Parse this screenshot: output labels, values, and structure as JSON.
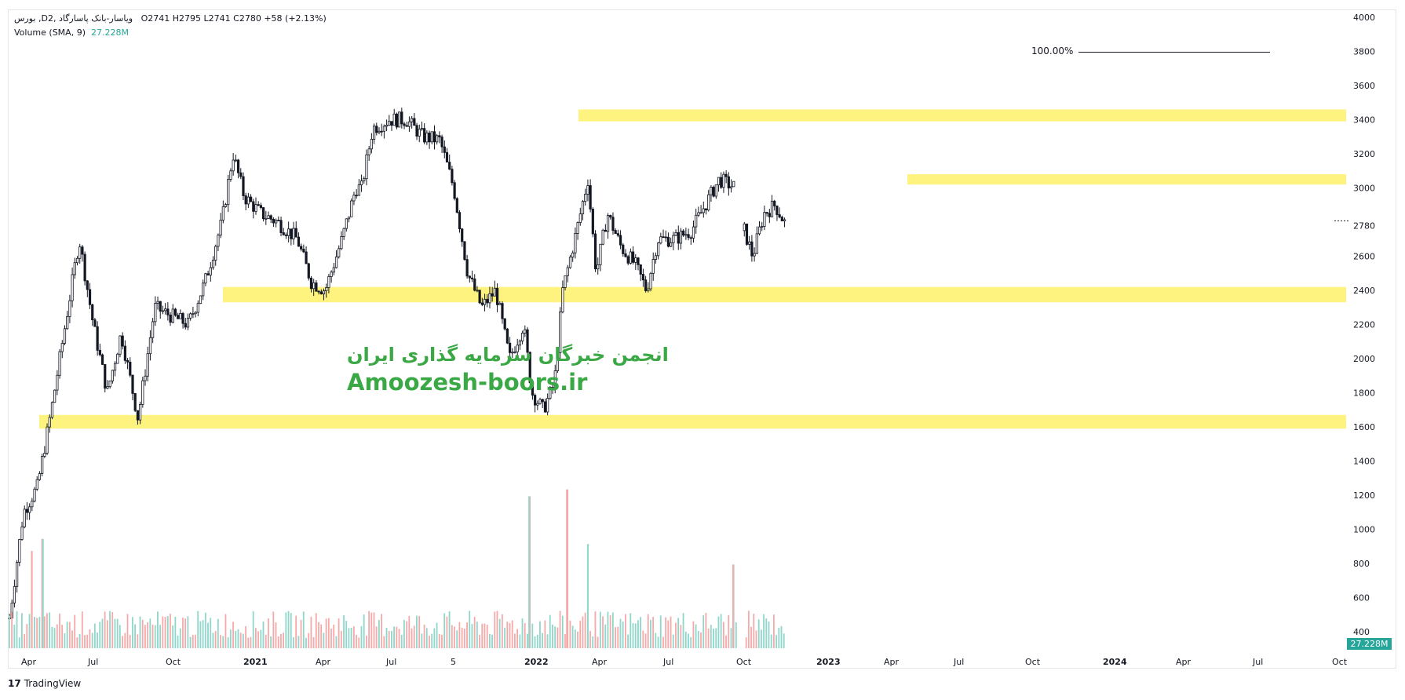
{
  "header": {
    "symbol_line": "بورس ,Dویاسار-بانک پاسارگاد ,2",
    "ohlc": "O2741  H2795  L2741  C2780  +58 (+2.13%)",
    "indicator_name": "Volume (SMA, 9)",
    "indicator_value": "27.228M"
  },
  "watermark": {
    "line1": "انجمن خبرگان سرمایه گذاری ایران",
    "line2": "Amoozesh-boors.ir"
  },
  "fib_label": "100.00%",
  "volume_badge": "27.228M",
  "footer": {
    "logo": "17",
    "brand": "TradingView"
  },
  "colors": {
    "zone": "#fff380",
    "candle": "#131722",
    "vol_up": "#8fd6cb",
    "vol_down": "#f6a9a9",
    "badge": "#26a69a",
    "watermark": "#3aa845"
  },
  "chart_data": {
    "type": "candlestick",
    "ylim": [
      400,
      4000
    ],
    "y_ticks": [
      400,
      600,
      800,
      1000,
      1200,
      1400,
      1600,
      1800,
      2000,
      2200,
      2400,
      2600,
      2780,
      3000,
      3200,
      3400,
      3600,
      3800,
      4000
    ],
    "current_price": 2780,
    "x_ticks": [
      {
        "label": "Apr",
        "bold": false
      },
      {
        "label": "Jul",
        "bold": false
      },
      {
        "label": "Oct",
        "bold": false
      },
      {
        "label": "2021",
        "bold": true
      },
      {
        "label": "Apr",
        "bold": false
      },
      {
        "label": "Jul",
        "bold": false
      },
      {
        "label": "5",
        "bold": false
      },
      {
        "label": "2022",
        "bold": true
      },
      {
        "label": "Apr",
        "bold": false
      },
      {
        "label": "Jul",
        "bold": false
      },
      {
        "label": "Oct",
        "bold": false
      },
      {
        "label": "2023",
        "bold": true
      },
      {
        "label": "Apr",
        "bold": false
      },
      {
        "label": "Jul",
        "bold": false
      },
      {
        "label": "Oct",
        "bold": false
      },
      {
        "label": "2024",
        "bold": true
      },
      {
        "label": "Apr",
        "bold": false
      },
      {
        "label": "Jul",
        "bold": false
      },
      {
        "label": "Oct",
        "bold": false
      }
    ],
    "zones": [
      {
        "low": 3390,
        "high": 3460,
        "start_index": 12
      },
      {
        "low": 3020,
        "high": 3080,
        "start_index": 18
      },
      {
        "low": 2330,
        "high": 2420,
        "start_index": 3
      },
      {
        "low": 1590,
        "high": 1670,
        "start_index": 0
      }
    ],
    "price_path": [
      {
        "t": 0.0,
        "price": 480
      },
      {
        "t": 0.5,
        "price": 1100
      },
      {
        "t": 1.0,
        "price": 1250
      },
      {
        "t": 1.5,
        "price": 1700
      },
      {
        "t": 2.0,
        "price": 2200
      },
      {
        "t": 2.5,
        "price": 2700
      },
      {
        "t": 3.0,
        "price": 2200
      },
      {
        "t": 3.5,
        "price": 1800
      },
      {
        "t": 4.0,
        "price": 2150
      },
      {
        "t": 4.6,
        "price": 1650
      },
      {
        "t": 5.2,
        "price": 2300
      },
      {
        "t": 5.8,
        "price": 2250
      },
      {
        "t": 6.4,
        "price": 2200
      },
      {
        "t": 7.0,
        "price": 2450
      },
      {
        "t": 7.6,
        "price": 2800
      },
      {
        "t": 8.0,
        "price": 3200
      },
      {
        "t": 8.4,
        "price": 2950
      },
      {
        "t": 9.0,
        "price": 2850
      },
      {
        "t": 9.6,
        "price": 2800
      },
      {
        "t": 10.3,
        "price": 2700
      },
      {
        "t": 10.8,
        "price": 2450
      },
      {
        "t": 11.3,
        "price": 2400
      },
      {
        "t": 11.9,
        "price": 2700
      },
      {
        "t": 12.4,
        "price": 3000
      },
      {
        "t": 12.6,
        "price": 3000
      },
      {
        "t": 13.0,
        "price": 3350
      },
      {
        "t": 13.6,
        "price": 3400
      },
      {
        "t": 14.2,
        "price": 3400
      },
      {
        "t": 14.8,
        "price": 3300
      },
      {
        "t": 15.4,
        "price": 3280
      },
      {
        "t": 15.9,
        "price": 3000
      },
      {
        "t": 16.4,
        "price": 2500
      },
      {
        "t": 16.9,
        "price": 2300
      },
      {
        "t": 17.4,
        "price": 2400
      },
      {
        "t": 17.9,
        "price": 2000
      },
      {
        "t": 18.4,
        "price": 2200
      },
      {
        "t": 18.7,
        "price": 1800
      },
      {
        "t": 19.1,
        "price": 1700
      },
      {
        "t": 19.5,
        "price": 1850
      },
      {
        "t": 19.8,
        "price": 2400
      },
      {
        "t": 20.3,
        "price": 2750
      },
      {
        "t": 20.7,
        "price": 3050
      },
      {
        "t": 21.0,
        "price": 2500
      },
      {
        "t": 21.4,
        "price": 2850
      },
      {
        "t": 21.9,
        "price": 2650
      },
      {
        "t": 22.4,
        "price": 2550
      },
      {
        "t": 22.8,
        "price": 2400
      },
      {
        "t": 23.2,
        "price": 2700
      },
      {
        "t": 23.8,
        "price": 2700
      },
      {
        "t": 24.4,
        "price": 2750
      },
      {
        "t": 24.9,
        "price": 2900
      },
      {
        "t": 25.4,
        "price": 3050
      },
      {
        "t": 26.0,
        "price": 3000
      }
    ],
    "price_path_2": [
      {
        "t": 26.3,
        "price": 2750
      },
      {
        "t": 26.6,
        "price": 2600
      },
      {
        "t": 27.0,
        "price": 2850
      },
      {
        "t": 27.4,
        "price": 2900
      },
      {
        "t": 27.8,
        "price": 2780
      }
    ],
    "volume_spikes": [
      {
        "t": 18.6,
        "value": 1200,
        "dir": "up"
      },
      {
        "t": 19.95,
        "value": 1240,
        "dir": "down"
      },
      {
        "t": 20.7,
        "value": 920,
        "dir": "up"
      },
      {
        "t": 1.2,
        "value": 950,
        "dir": "up"
      },
      {
        "t": 0.8,
        "value": 880,
        "dir": "down"
      },
      {
        "t": 25.9,
        "value": 800,
        "dir": "down"
      }
    ]
  }
}
